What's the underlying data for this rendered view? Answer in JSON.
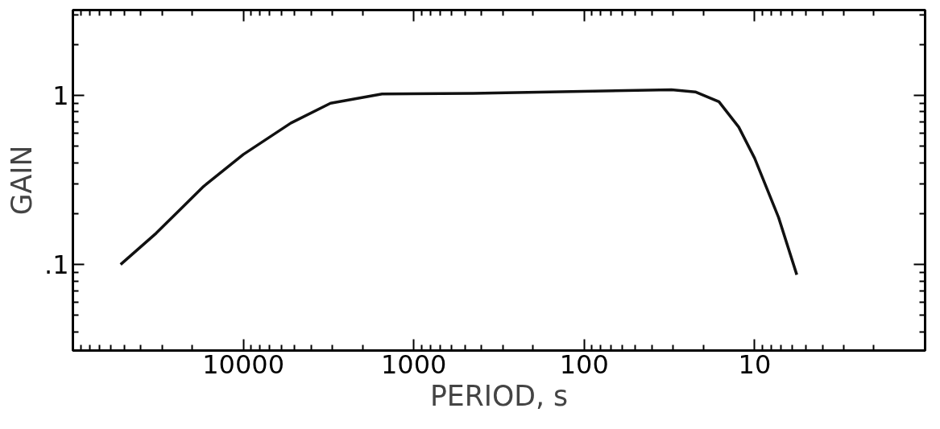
{
  "chart_data": {
    "type": "line",
    "xlabel": "PERIOD, s",
    "ylabel": "GAIN",
    "log": "xy",
    "grid": false,
    "marker": "none",
    "line_style": "solid",
    "xlim": [
      100000,
      1
    ],
    "ylim": [
      0.031,
      3.2
    ],
    "xticks": [
      10000,
      1000,
      100,
      10
    ],
    "yticks": [
      {
        "value": 1,
        "label": "1"
      },
      {
        "value": 0.1,
        "label": ".1"
      }
    ],
    "series": [
      {
        "color": "#111111",
        "x": [
          52500,
          32500,
          17100,
          10000,
          5260,
          3080,
          1535,
          448,
          30.8,
          22.3,
          16.2,
          12.4,
          10,
          7.24,
          5.66
        ],
        "values": [
          0.1,
          0.153,
          0.29,
          0.448,
          0.687,
          0.9,
          1.02,
          1.03,
          1.08,
          1.05,
          0.918,
          0.65,
          0.425,
          0.19,
          0.087
        ]
      }
    ]
  }
}
